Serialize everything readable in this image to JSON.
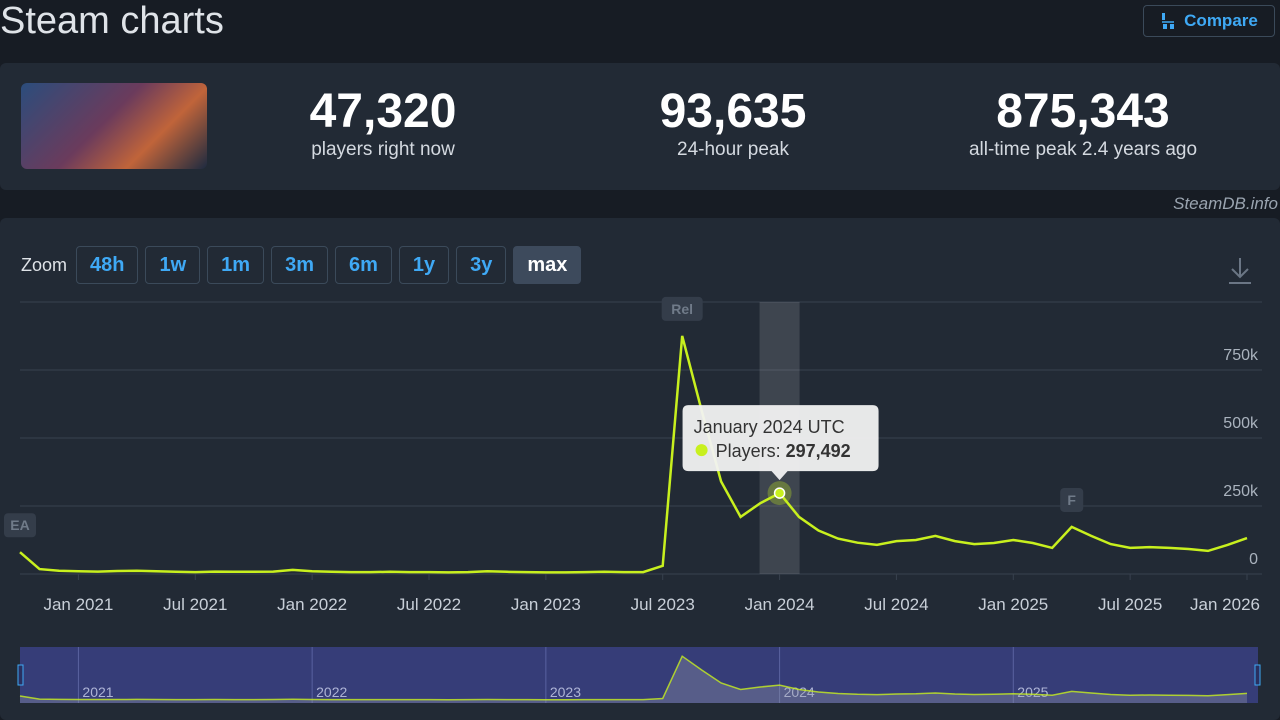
{
  "header": {
    "title": "Steam charts",
    "compare": "Compare"
  },
  "stats": [
    {
      "value": "47,320",
      "label": "players right now"
    },
    {
      "value": "93,635",
      "label": "24-hour peak"
    },
    {
      "value": "875,343",
      "label": "all-time peak 2.4 years ago"
    }
  ],
  "watermark": "SteamDB.info",
  "zoom": {
    "label": "Zoom",
    "options": [
      "48h",
      "1w",
      "1m",
      "3m",
      "6m",
      "1y",
      "3y",
      "max"
    ],
    "active": "max"
  },
  "chart_data": {
    "type": "line",
    "x": [
      "2020-10",
      "2020-11",
      "2020-12",
      "2021-01",
      "2021-02",
      "2021-03",
      "2021-04",
      "2021-05",
      "2021-06",
      "2021-07",
      "2021-08",
      "2021-09",
      "2021-10",
      "2021-11",
      "2021-12",
      "2022-01",
      "2022-02",
      "2022-03",
      "2022-04",
      "2022-05",
      "2022-06",
      "2022-07",
      "2022-08",
      "2022-09",
      "2022-10",
      "2022-11",
      "2022-12",
      "2023-01",
      "2023-02",
      "2023-03",
      "2023-04",
      "2023-05",
      "2023-06",
      "2023-07",
      "2023-08",
      "2023-09",
      "2023-10",
      "2023-11",
      "2023-12",
      "2024-01",
      "2024-02",
      "2024-03",
      "2024-04",
      "2024-05",
      "2024-06",
      "2024-07",
      "2024-08",
      "2024-09",
      "2024-10",
      "2024-11",
      "2024-12",
      "2025-01",
      "2025-02",
      "2025-03",
      "2025-04",
      "2025-05",
      "2025-06",
      "2025-07",
      "2025-08",
      "2025-09",
      "2025-10",
      "2025-11",
      "2025-12",
      "2026-01"
    ],
    "series": [
      {
        "name": "Players",
        "color": "#c8f01e",
        "values": [
          80000,
          18000,
          12000,
          10000,
          9000,
          11000,
          12000,
          10000,
          8000,
          7000,
          9000,
          8000,
          8000,
          9000,
          15000,
          10000,
          8000,
          7000,
          7000,
          8000,
          7000,
          7000,
          6000,
          7000,
          10000,
          8000,
          7000,
          6000,
          6000,
          7000,
          8000,
          7000,
          7000,
          30000,
          875343,
          600000,
          340000,
          210000,
          260000,
          297492,
          210000,
          160000,
          130000,
          115000,
          107000,
          121000,
          125000,
          140000,
          121000,
          110000,
          114000,
          125000,
          114000,
          96000,
          173000,
          140000,
          110000,
          96000,
          99000,
          96000,
          92000,
          85000,
          107000,
          132000
        ]
      }
    ],
    "ylim": [
      0,
      1000000
    ],
    "yticks": [
      {
        "value": 0,
        "label": "0"
      },
      {
        "value": 250000,
        "label": "250k"
      },
      {
        "value": 500000,
        "label": "500k"
      },
      {
        "value": 750000,
        "label": "750k"
      },
      1000000
    ],
    "xticks": [
      {
        "value": "2021-01",
        "label": "Jan 2021"
      },
      {
        "value": "2021-07",
        "label": "Jul 2021"
      },
      {
        "value": "2022-01",
        "label": "Jan 2022"
      },
      {
        "value": "2022-07",
        "label": "Jul 2022"
      },
      {
        "value": "2023-01",
        "label": "Jan 2023"
      },
      {
        "value": "2023-07",
        "label": "Jul 2023"
      },
      {
        "value": "2024-01",
        "label": "Jan 2024"
      },
      {
        "value": "2024-07",
        "label": "Jul 2024"
      },
      {
        "value": "2025-01",
        "label": "Jan 2025"
      },
      {
        "value": "2025-07",
        "label": "Jul 2025"
      },
      {
        "value": "2026-01",
        "label": "Jan 2026"
      }
    ],
    "grid": true,
    "annotations": [
      {
        "text": "EA",
        "x": "2020-10"
      },
      {
        "text": "Rel",
        "x": "2023-08"
      },
      {
        "text": "F",
        "x": "2025-04"
      }
    ],
    "tooltip": {
      "x": "2024-01",
      "title": "January 2024 UTC",
      "label": "Players:",
      "value_label": "297,492"
    },
    "navigator": [
      {
        "value": "2021-01",
        "label": "2021"
      },
      {
        "value": "2022-01",
        "label": "2022"
      },
      {
        "value": "2023-01",
        "label": "2023"
      },
      {
        "value": "2024-01",
        "label": "2024"
      },
      {
        "value": "2025-01",
        "label": "2025"
      }
    ]
  }
}
